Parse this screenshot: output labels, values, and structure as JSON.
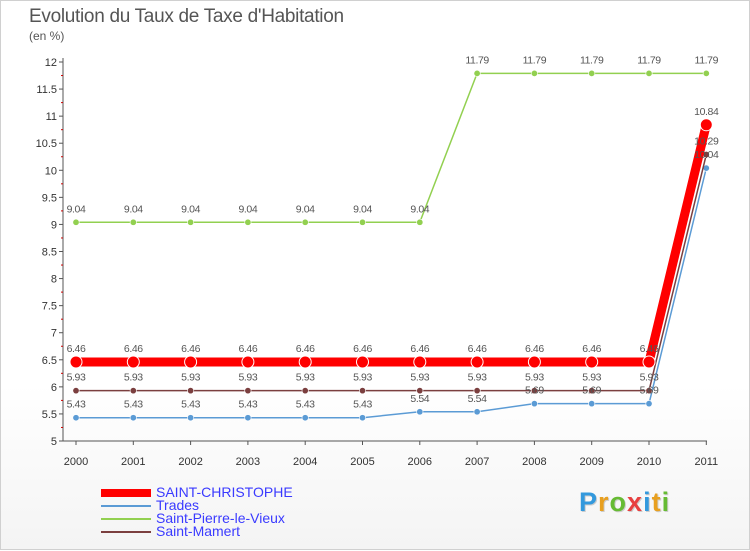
{
  "chart_data": {
    "type": "line",
    "title": "Evolution du Taux de Taxe d'Habitation",
    "ylabel": "(en %)",
    "xlabel": "",
    "ylim": [
      5,
      12
    ],
    "yticks": [
      "5",
      "5.5",
      "6",
      "6.5",
      "7",
      "7.5",
      "8",
      "8.5",
      "9",
      "9.5",
      "10",
      "10.5",
      "11",
      "11.5",
      "12"
    ],
    "categories": [
      "2000",
      "2001",
      "2002",
      "2003",
      "2004",
      "2005",
      "2006",
      "2007",
      "2008",
      "2009",
      "2010",
      "2011"
    ],
    "grid": false,
    "series": [
      {
        "name": "SAINT-CHRISTOPHE",
        "color": "#ff0000",
        "values": [
          6.46,
          6.46,
          6.46,
          6.46,
          6.46,
          6.46,
          6.46,
          6.46,
          6.46,
          6.46,
          6.46,
          10.84
        ],
        "labels": [
          "6.46",
          "6.46",
          "6.46",
          "6.46",
          "6.46",
          "6.46",
          "6.46",
          "6.46",
          "6.46",
          "6.46",
          "6.46",
          "10.84"
        ]
      },
      {
        "name": "Trades",
        "color": "#5b9bd5",
        "values": [
          5.43,
          5.43,
          5.43,
          5.43,
          5.43,
          5.43,
          5.54,
          5.54,
          5.69,
          5.69,
          5.69,
          10.04
        ],
        "labels": [
          "5.43",
          "5.43",
          "5.43",
          "5.43",
          "5.43",
          "5.43",
          "5.54",
          "5.54",
          "5.69",
          "5.69",
          "5.69",
          "10.04"
        ]
      },
      {
        "name": "Saint-Pierre-le-Vieux",
        "color": "#92d050",
        "values": [
          9.04,
          9.04,
          9.04,
          9.04,
          9.04,
          9.04,
          9.04,
          11.79,
          11.79,
          11.79,
          11.79,
          11.79
        ],
        "labels": [
          "9.04",
          "9.04",
          "9.04",
          "9.04",
          "9.04",
          "9.04",
          "9.04",
          "11.79",
          "11.79",
          "11.79",
          "11.79",
          "11.79"
        ]
      },
      {
        "name": "Saint-Mamert",
        "color": "#7b3f3f",
        "values": [
          5.93,
          5.93,
          5.93,
          5.93,
          5.93,
          5.93,
          5.93,
          5.93,
          5.93,
          5.93,
          5.93,
          10.29
        ],
        "labels": [
          "5.93",
          "5.93",
          "5.93",
          "5.93",
          "5.93",
          "5.93",
          "5.93",
          "5.93",
          "5.93",
          "5.93",
          "5.93",
          "10.29"
        ]
      }
    ]
  },
  "brand": {
    "letters": [
      "P",
      "r",
      "o",
      "x",
      "i",
      "t",
      "i"
    ],
    "colors": [
      "#3399dd",
      "#e8a020",
      "#66bb33",
      "#e84040",
      "#3399dd",
      "#e8a020",
      "#66bb33"
    ]
  },
  "colors": {
    "axis": "#555555",
    "tick_text": "#333333",
    "label_text": "#555555",
    "legend_text": "#3a3aff"
  }
}
